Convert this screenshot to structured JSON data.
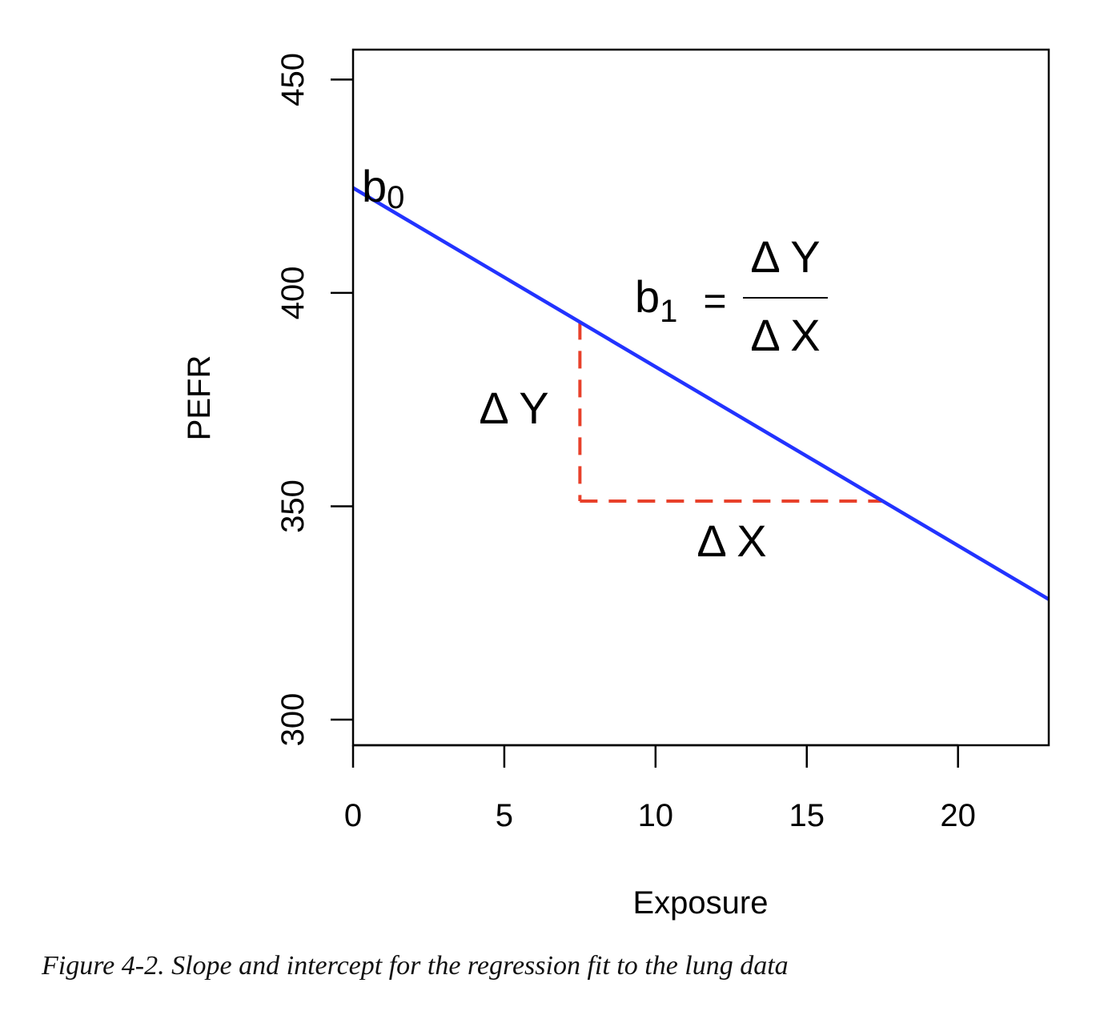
{
  "chart_data": {
    "type": "line",
    "xlabel": "Exposure",
    "ylabel": "PEFR",
    "xlim": [
      0,
      23
    ],
    "ylim": [
      294,
      457
    ],
    "x_ticks": [
      0,
      5,
      10,
      15,
      20
    ],
    "y_ticks": [
      300,
      350,
      400,
      450
    ],
    "series": [
      {
        "x": [
          0,
          23
        ],
        "y": [
          424.6,
          328.2
        ],
        "color": "#2233ff"
      }
    ],
    "annotations": {
      "intercept_label": "b",
      "intercept_sub": "0",
      "slope_label": "b",
      "slope_sub": "1",
      "equals": "=",
      "numerator": "Δ Y",
      "denominator": "Δ X",
      "delta_y_label": "Δ Y",
      "delta_x_label": "Δ X",
      "delta_x_start": 7.5,
      "delta_x_end": 17.5,
      "delta_y_base": 351.2,
      "delta_color": "#e8402a"
    }
  },
  "caption": "Figure 4-2. Slope and intercept for the regression fit to the lung data"
}
